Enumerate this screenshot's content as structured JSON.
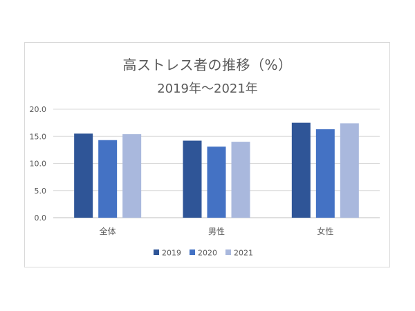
{
  "chart_data": {
    "type": "bar",
    "title": "高ストレス者の推移（%）",
    "subtitle": "2019年～2021年",
    "categories": [
      "全体",
      "男性",
      "女性"
    ],
    "series": [
      {
        "name": "2019",
        "color": "#2f5597",
        "values": [
          15.5,
          14.2,
          17.5
        ]
      },
      {
        "name": "2020",
        "color": "#4472c4",
        "values": [
          14.3,
          13.1,
          16.3
        ]
      },
      {
        "name": "2021",
        "color": "#a9b8dd",
        "values": [
          15.4,
          14.0,
          17.4
        ]
      }
    ],
    "yticks": [
      "0.0",
      "5.0",
      "10.0",
      "15.0",
      "20.0"
    ],
    "ylim": [
      0,
      20
    ],
    "grid": true,
    "legend_position": "bottom"
  }
}
